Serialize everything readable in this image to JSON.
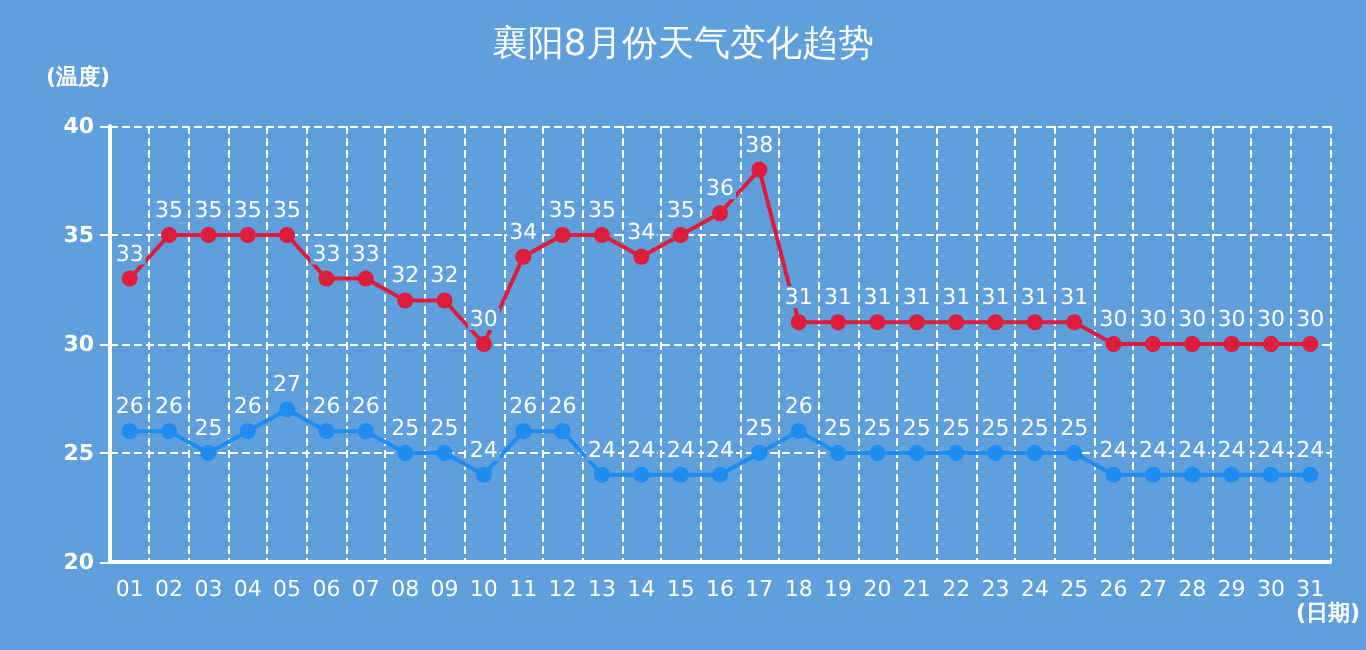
{
  "chart_data": {
    "type": "line",
    "title": "襄阳8月份天气变化趋势",
    "xlabel": "(日期)",
    "ylabel": "(温度)",
    "categories": [
      "01",
      "02",
      "03",
      "04",
      "05",
      "06",
      "07",
      "08",
      "09",
      "10",
      "11",
      "12",
      "13",
      "14",
      "15",
      "16",
      "17",
      "18",
      "19",
      "20",
      "21",
      "22",
      "23",
      "24",
      "25",
      "26",
      "27",
      "28",
      "29",
      "30",
      "31"
    ],
    "series": [
      {
        "color": "#dc1e3c",
        "values": [
          33,
          35,
          35,
          35,
          35,
          33,
          33,
          32,
          32,
          30,
          34,
          35,
          35,
          34,
          35,
          36,
          38,
          31,
          31,
          31,
          31,
          31,
          31,
          31,
          31,
          30,
          30,
          30,
          30,
          30,
          30
        ]
      },
      {
        "color": "#1e8cf0",
        "values": [
          26,
          26,
          25,
          26,
          27,
          26,
          26,
          25,
          25,
          24,
          26,
          26,
          24,
          24,
          24,
          24,
          25,
          26,
          25,
          25,
          25,
          25,
          25,
          25,
          25,
          24,
          24,
          24,
          24,
          24,
          24
        ]
      }
    ],
    "ylim": [
      20,
      40
    ],
    "yticks": [
      20,
      25,
      30,
      35,
      40
    ],
    "grid": true,
    "marker": "circle",
    "line_style": "solid",
    "data_labels": true
  }
}
